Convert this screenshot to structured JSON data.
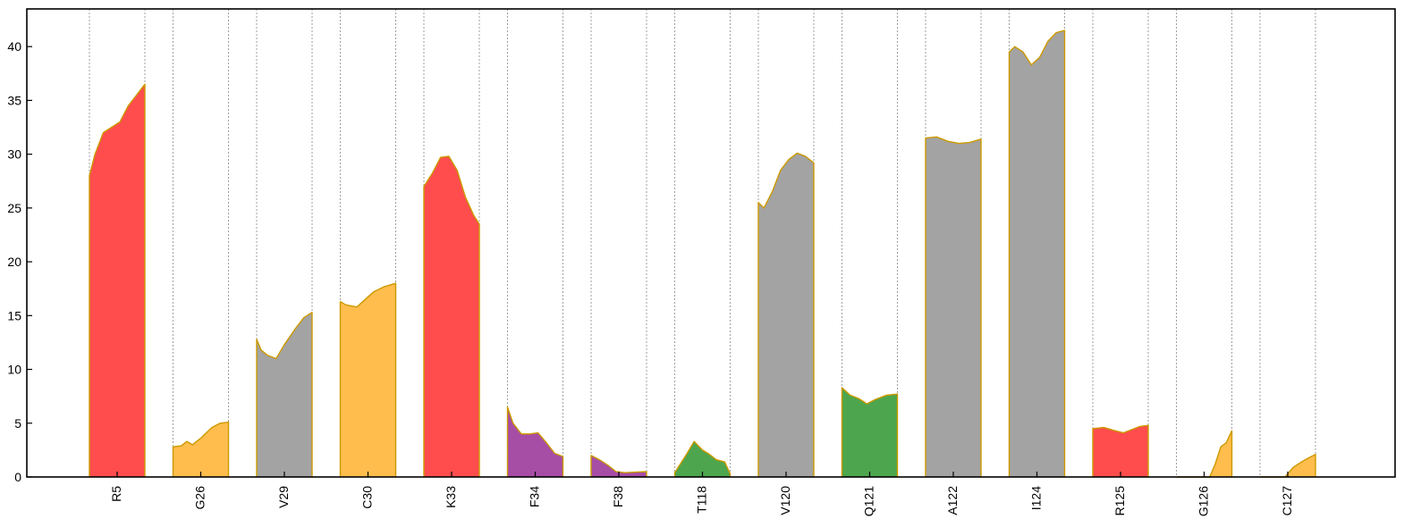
{
  "chart_data": {
    "type": "area",
    "title": "",
    "xlabel": "",
    "ylabel": "",
    "ylim": [
      0,
      43.5
    ],
    "yticks": [
      0,
      5,
      10,
      15,
      20,
      25,
      30,
      35,
      40
    ],
    "grid": "vertical dashed separators between residue bands",
    "categories": [
      "R5",
      "G26",
      "V29",
      "C30",
      "K33",
      "F34",
      "F38",
      "T118",
      "V120",
      "Q121",
      "A122",
      "I124",
      "R125",
      "G126",
      "C127"
    ],
    "colors": {
      "positive": "#ff4d4d",
      "special": "#ffbd4d",
      "hydrophobic": "#a3a3a3",
      "aromatic": "#a64da6",
      "polar": "#4da64d",
      "outline": "#cc9900"
    },
    "series": [
      {
        "residue": "R5",
        "color": "#ff4d4d",
        "profile": [
          [
            0,
            28
          ],
          [
            0.1,
            30
          ],
          [
            0.25,
            32
          ],
          [
            0.4,
            32.5
          ],
          [
            0.55,
            33
          ],
          [
            0.7,
            34.5
          ],
          [
            0.85,
            35.5
          ],
          [
            1,
            36.5
          ]
        ]
      },
      {
        "residue": "G26",
        "color": "#ffbd4d",
        "profile": [
          [
            0,
            2.8
          ],
          [
            0.15,
            2.9
          ],
          [
            0.25,
            3.3
          ],
          [
            0.35,
            3
          ],
          [
            0.5,
            3.6
          ],
          [
            0.7,
            4.6
          ],
          [
            0.85,
            5
          ],
          [
            1,
            5.1
          ]
        ]
      },
      {
        "residue": "V29",
        "color": "#a3a3a3",
        "profile": [
          [
            0,
            12.8
          ],
          [
            0.08,
            11.8
          ],
          [
            0.2,
            11.3
          ],
          [
            0.35,
            11
          ],
          [
            0.5,
            12.3
          ],
          [
            0.7,
            13.8
          ],
          [
            0.85,
            14.8
          ],
          [
            1,
            15.3
          ]
        ]
      },
      {
        "residue": "C30",
        "color": "#ffbd4d",
        "profile": [
          [
            0,
            16.3
          ],
          [
            0.1,
            16
          ],
          [
            0.3,
            15.8
          ],
          [
            0.45,
            16.5
          ],
          [
            0.6,
            17.2
          ],
          [
            0.8,
            17.7
          ],
          [
            1,
            18
          ]
        ]
      },
      {
        "residue": "K33",
        "color": "#ff4d4d",
        "profile": [
          [
            0,
            27
          ],
          [
            0.15,
            28.2
          ],
          [
            0.3,
            29.7
          ],
          [
            0.45,
            29.8
          ],
          [
            0.6,
            28.5
          ],
          [
            0.75,
            26
          ],
          [
            0.9,
            24.3
          ],
          [
            1,
            23.5
          ]
        ]
      },
      {
        "residue": "F34",
        "color": "#a64da6",
        "profile": [
          [
            0,
            6.5
          ],
          [
            0.1,
            5
          ],
          [
            0.25,
            4
          ],
          [
            0.4,
            4
          ],
          [
            0.55,
            4.1
          ],
          [
            0.7,
            3.2
          ],
          [
            0.85,
            2.2
          ],
          [
            1,
            1.9
          ]
        ]
      },
      {
        "residue": "F38",
        "color": "#a64da6",
        "profile": [
          [
            0,
            2
          ],
          [
            0.15,
            1.6
          ],
          [
            0.3,
            1.1
          ],
          [
            0.45,
            0.5
          ],
          [
            0.6,
            0.4
          ],
          [
            0.8,
            0.45
          ],
          [
            1,
            0.5
          ]
        ]
      },
      {
        "residue": "T118",
        "color": "#4da64d",
        "profile": [
          [
            0,
            0.4
          ],
          [
            0.1,
            1.2
          ],
          [
            0.2,
            2
          ],
          [
            0.35,
            3.3
          ],
          [
            0.5,
            2.5
          ],
          [
            0.6,
            2.2
          ],
          [
            0.75,
            1.6
          ],
          [
            0.9,
            1.4
          ],
          [
            1,
            0.3
          ]
        ]
      },
      {
        "residue": "V120",
        "color": "#a3a3a3",
        "profile": [
          [
            0,
            25.5
          ],
          [
            0.1,
            25
          ],
          [
            0.25,
            26.5
          ],
          [
            0.4,
            28.5
          ],
          [
            0.55,
            29.5
          ],
          [
            0.7,
            30.1
          ],
          [
            0.85,
            29.8
          ],
          [
            1,
            29.2
          ]
        ]
      },
      {
        "residue": "Q121",
        "color": "#4da64d",
        "profile": [
          [
            0,
            8.3
          ],
          [
            0.15,
            7.6
          ],
          [
            0.3,
            7.3
          ],
          [
            0.45,
            6.8
          ],
          [
            0.6,
            7.2
          ],
          [
            0.8,
            7.6
          ],
          [
            1,
            7.7
          ]
        ]
      },
      {
        "residue": "A122",
        "color": "#a3a3a3",
        "profile": [
          [
            0,
            31.5
          ],
          [
            0.2,
            31.6
          ],
          [
            0.4,
            31.2
          ],
          [
            0.6,
            31
          ],
          [
            0.8,
            31.1
          ],
          [
            1,
            31.4
          ]
        ]
      },
      {
        "residue": "I124",
        "color": "#a3a3a3",
        "profile": [
          [
            0,
            39.5
          ],
          [
            0.1,
            40
          ],
          [
            0.25,
            39.5
          ],
          [
            0.4,
            38.3
          ],
          [
            0.55,
            39
          ],
          [
            0.7,
            40.5
          ],
          [
            0.85,
            41.3
          ],
          [
            1,
            41.5
          ]
        ]
      },
      {
        "residue": "R125",
        "color": "#ff4d4d",
        "profile": [
          [
            0,
            4.5
          ],
          [
            0.2,
            4.6
          ],
          [
            0.4,
            4.3
          ],
          [
            0.55,
            4.1
          ],
          [
            0.7,
            4.4
          ],
          [
            0.85,
            4.7
          ],
          [
            1,
            4.8
          ]
        ]
      },
      {
        "residue": "G126",
        "color": "#ffbd4d",
        "profile": [
          [
            0,
            0
          ],
          [
            0.6,
            0
          ],
          [
            0.7,
            1.2
          ],
          [
            0.8,
            2.8
          ],
          [
            0.9,
            3.2
          ],
          [
            1,
            4.3
          ]
        ]
      },
      {
        "residue": "C127",
        "color": "#ffbd4d",
        "profile": [
          [
            0,
            0
          ],
          [
            0.45,
            0
          ],
          [
            0.6,
            0.9
          ],
          [
            0.75,
            1.4
          ],
          [
            0.85,
            1.7
          ],
          [
            1,
            2.1
          ]
        ]
      }
    ]
  }
}
